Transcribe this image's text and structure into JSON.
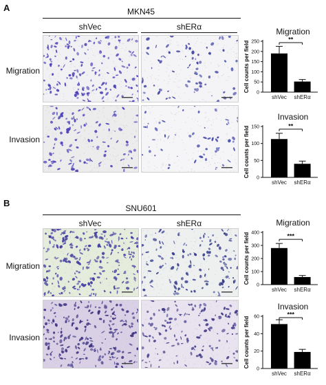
{
  "panels": [
    {
      "letter": "A",
      "cell_line": "MKN45",
      "columns": [
        "shVec",
        "shERα"
      ],
      "rows": [
        "Migration",
        "Invasion"
      ]
    },
    {
      "letter": "B",
      "cell_line": "SNU601",
      "columns": [
        "shVec",
        "shERα"
      ],
      "rows": [
        "Migration",
        "Invasion"
      ]
    }
  ],
  "chart_data": [
    {
      "type": "bar",
      "title": "Migration",
      "categories": [
        "shVec",
        "shERα"
      ],
      "values": [
        190,
        52
      ],
      "errors": [
        35,
        10
      ],
      "ylabel": "Cell counts per field",
      "ylim": [
        0,
        250
      ],
      "yticks": [
        0,
        50,
        100,
        150,
        200,
        250
      ],
      "significance": "**",
      "bar_color": "#000000"
    },
    {
      "type": "bar",
      "title": "Invasion",
      "categories": [
        "shVec",
        "shERα"
      ],
      "values": [
        113,
        40
      ],
      "errors": [
        17,
        8
      ],
      "ylabel": "Cell counts per field",
      "ylim": [
        0,
        150
      ],
      "yticks": [
        0,
        50,
        100,
        150
      ],
      "significance": "**",
      "bar_color": "#000000"
    },
    {
      "type": "bar",
      "title": "Migration",
      "categories": [
        "shVec",
        "shERα"
      ],
      "values": [
        280,
        58
      ],
      "errors": [
        35,
        12
      ],
      "ylabel": "Cell counts per field",
      "ylim": [
        0,
        400
      ],
      "yticks": [
        0,
        100,
        200,
        300,
        400
      ],
      "significance": "***",
      "bar_color": "#000000"
    },
    {
      "type": "bar",
      "title": "Invasion",
      "categories": [
        "shVec",
        "shERα"
      ],
      "values": [
        51,
        19
      ],
      "errors": [
        5,
        3
      ],
      "ylabel": "Cell counts per field",
      "ylim": [
        0,
        60
      ],
      "yticks": [
        0,
        20,
        40,
        60
      ],
      "significance": "***",
      "bar_color": "#000000"
    }
  ],
  "micrographs": [
    {
      "name": "mkn45-migration-shvec",
      "bg": "#f1f1f3",
      "dot": "#4a3fb8",
      "density": 170
    },
    {
      "name": "mkn45-migration-sheralpha",
      "bg": "#f4f4f6",
      "dot": "#3a3fa0",
      "density": 75
    },
    {
      "name": "mkn45-invasion-shvec",
      "bg": "#ececed",
      "dot": "#4a3fb8",
      "density": 120
    },
    {
      "name": "mkn45-invasion-sheralpha",
      "bg": "#f5f5f7",
      "dot": "#3d44a8",
      "density": 55
    },
    {
      "name": "snu601-migration-shvec",
      "bg": "#e5ecdc",
      "dot": "#3f3a9e",
      "density": 240
    },
    {
      "name": "snu601-migration-sheralpha",
      "bg": "#eef0f0",
      "dot": "#323a8a",
      "density": 150
    },
    {
      "name": "snu601-invasion-shvec",
      "bg": "#d9d0e6",
      "dot": "#3b307f",
      "density": 220
    },
    {
      "name": "snu601-invasion-sheralpha",
      "bg": "#e8e3ef",
      "dot": "#3c3585",
      "density": 150
    }
  ]
}
